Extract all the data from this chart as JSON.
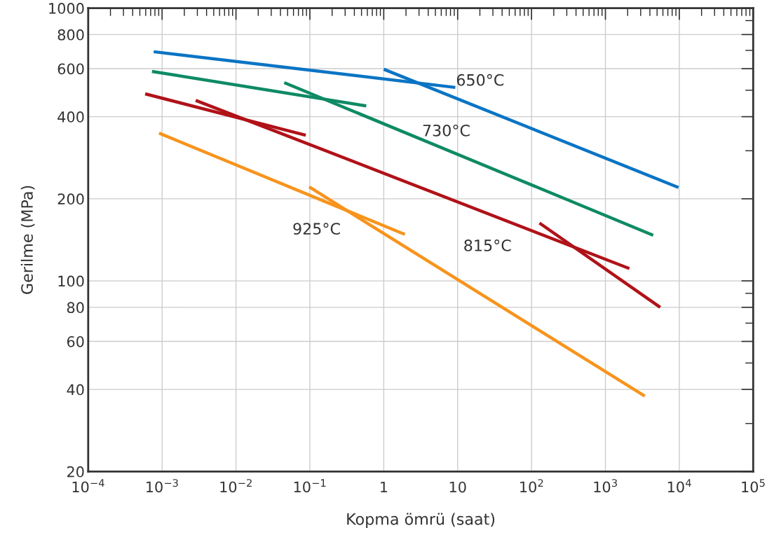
{
  "chart_data": {
    "type": "line",
    "xlabel": "Kopma ömrü (saat)",
    "ylabel": "Gerilme (MPa)",
    "log": "xy",
    "grid": true,
    "line_style": "solid",
    "marker": "none",
    "xlim": [
      0.0001,
      100000
    ],
    "ylim": [
      20,
      1000
    ],
    "xticks": [
      {
        "value": 0.0001,
        "label": "10$^{−4}$"
      },
      {
        "value": 0.0002,
        "label": null
      },
      {
        "value": 0.0003,
        "label": null
      },
      {
        "value": 0.0004,
        "label": null
      },
      {
        "value": 0.0005,
        "label": null
      },
      {
        "value": 0.0006,
        "label": null
      },
      {
        "value": 0.0007,
        "label": null
      },
      {
        "value": 0.0008,
        "label": null
      },
      {
        "value": 0.0009,
        "label": null
      },
      {
        "value": 0.001,
        "label": "10$^{−3}$"
      },
      {
        "value": 0.002,
        "label": null
      },
      {
        "value": 0.003,
        "label": null
      },
      {
        "value": 0.004,
        "label": null
      },
      {
        "value": 0.005,
        "label": null
      },
      {
        "value": 0.006,
        "label": null
      },
      {
        "value": 0.007,
        "label": null
      },
      {
        "value": 0.008,
        "label": null
      },
      {
        "value": 0.009,
        "label": null
      },
      {
        "value": 0.01,
        "label": "10$^{−2}$"
      },
      {
        "value": 0.02,
        "label": null
      },
      {
        "value": 0.03,
        "label": null
      },
      {
        "value": 0.04,
        "label": null
      },
      {
        "value": 0.05,
        "label": null
      },
      {
        "value": 0.06,
        "label": null
      },
      {
        "value": 0.07,
        "label": null
      },
      {
        "value": 0.08,
        "label": null
      },
      {
        "value": 0.09,
        "label": null
      },
      {
        "value": 0.1,
        "label": "10$^{−1}$"
      },
      {
        "value": 0.2,
        "label": null
      },
      {
        "value": 0.3,
        "label": null
      },
      {
        "value": 0.4,
        "label": null
      },
      {
        "value": 0.5,
        "label": null
      },
      {
        "value": 0.6,
        "label": null
      },
      {
        "value": 0.7,
        "label": null
      },
      {
        "value": 0.8,
        "label": null
      },
      {
        "value": 0.9,
        "label": null
      },
      1,
      {
        "value": 2,
        "label": null
      },
      {
        "value": 3,
        "label": null
      },
      {
        "value": 4,
        "label": null
      },
      {
        "value": 5,
        "label": null
      },
      {
        "value": 6,
        "label": null
      },
      {
        "value": 7,
        "label": null
      },
      {
        "value": 8,
        "label": null
      },
      {
        "value": 9,
        "label": null
      },
      10,
      {
        "value": 20,
        "label": null
      },
      {
        "value": 30,
        "label": null
      },
      {
        "value": 40,
        "label": null
      },
      {
        "value": 50,
        "label": null
      },
      {
        "value": 60,
        "label": null
      },
      {
        "value": 70,
        "label": null
      },
      {
        "value": 80,
        "label": null
      },
      {
        "value": 90,
        "label": null
      },
      {
        "value": 100,
        "label": "10$^{2}$"
      },
      {
        "value": 200,
        "label": null
      },
      {
        "value": 300,
        "label": null
      },
      {
        "value": 400,
        "label": null
      },
      {
        "value": 500,
        "label": null
      },
      {
        "value": 600,
        "label": null
      },
      {
        "value": 700,
        "label": null
      },
      {
        "value": 800,
        "label": null
      },
      {
        "value": 900,
        "label": null
      },
      {
        "value": 1000,
        "label": "10$^{3}$"
      },
      {
        "value": 2000,
        "label": null
      },
      {
        "value": 3000,
        "label": null
      },
      {
        "value": 4000,
        "label": null
      },
      {
        "value": 5000,
        "label": null
      },
      {
        "value": 6000,
        "label": null
      },
      {
        "value": 7000,
        "label": null
      },
      {
        "value": 8000,
        "label": null
      },
      {
        "value": 9000,
        "label": null
      },
      {
        "value": 10000,
        "label": "10$^{4}$"
      },
      {
        "value": 20000,
        "label": null
      },
      {
        "value": 30000,
        "label": null
      },
      {
        "value": 40000,
        "label": null
      },
      {
        "value": 50000,
        "label": null
      },
      {
        "value": 60000,
        "label": null
      },
      {
        "value": 70000,
        "label": null
      },
      {
        "value": 80000,
        "label": null
      },
      {
        "value": 90000,
        "label": null
      },
      {
        "value": 100000,
        "label": "10$^{5}$"
      }
    ],
    "yticks": [
      20,
      {
        "value": 30,
        "label": null
      },
      40,
      {
        "value": 50,
        "label": null
      },
      60,
      {
        "value": 70,
        "label": null
      },
      80,
      {
        "value": 90,
        "label": null
      },
      100,
      200,
      {
        "value": 300,
        "label": null
      },
      400,
      {
        "value": 500,
        "label": null
      },
      600,
      {
        "value": 700,
        "label": null
      },
      800,
      {
        "value": 900,
        "label": null
      },
      1000
    ],
    "series": [
      {
        "color": "#0a74c4",
        "x": [
          0.00077,
          9.3
        ],
        "values": [
          692,
          512
        ]
      },
      {
        "color": "#0a74c4",
        "x": [
          1.0,
          9750
        ],
        "values": [
          597,
          220
        ]
      },
      {
        "color": "#0e8a64",
        "x": [
          0.00073,
          0.58
        ],
        "values": [
          586,
          438
        ]
      },
      {
        "color": "#0e8a64",
        "x": [
          0.045,
          4430
        ],
        "values": [
          533,
          147
        ]
      },
      {
        "color": "#b01218",
        "x": [
          0.00059,
          0.088
        ],
        "values": [
          485,
          342
        ]
      },
      {
        "color": "#b01218",
        "x": [
          0.00285,
          2110
        ],
        "values": [
          459,
          111
        ]
      },
      {
        "color": "#b01218",
        "x": [
          128,
          5520
        ],
        "values": [
          163,
          80
        ]
      },
      {
        "color": "#f7941d",
        "x": [
          0.00091,
          1.93
        ],
        "values": [
          348,
          148
        ]
      },
      {
        "color": "#f7941d",
        "x": [
          0.098,
          3410
        ],
        "values": [
          221,
          37.8
        ]
      }
    ],
    "annotations": [
      "650°C",
      "730°C",
      "815°C",
      "925°C"
    ]
  }
}
